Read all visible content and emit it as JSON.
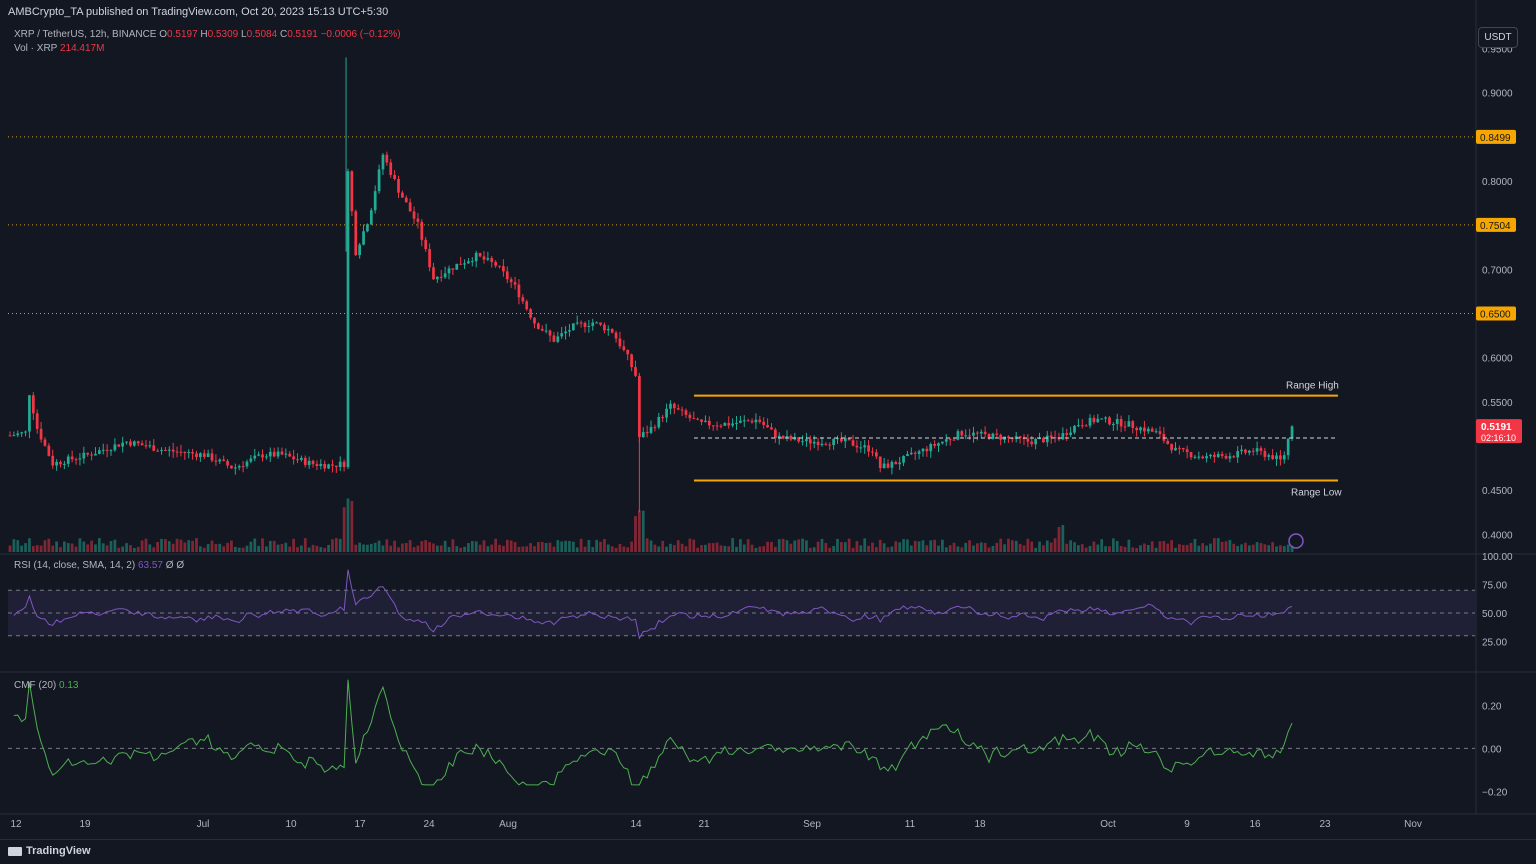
{
  "header": {
    "publisher": "AMBCrypto_TA published on TradingView.com, Oct 20, 2023 15:13 UTC+5:30",
    "symbol": "XRP / TetherUS, 12h, BINANCE",
    "o_label": "O",
    "o": "0.5197",
    "h_label": "H",
    "h": "0.5309",
    "l_label": "L",
    "l": "0.5084",
    "c_label": "C",
    "c": "0.5191",
    "change": "−0.0006 (−0.12%)",
    "vol_label": "Vol · XRP",
    "vol": "214.417M",
    "currency_button": "USDT"
  },
  "indicators": {
    "rsi_label": "RSI (14, close, SMA, 14, 2)",
    "rsi_value": "63.57",
    "rsi_extra": "Ø Ø",
    "cmf_label": "CMF (20)",
    "cmf_value": "0.13"
  },
  "footer": {
    "brand": "TradingView"
  },
  "colors": {
    "bg": "#131722",
    "up": "#22ab94",
    "down": "#f23645",
    "range": "#f7a600",
    "rsi": "#7e57c2",
    "cmf": "#4caf50"
  },
  "chart_data": {
    "type": "candlestick",
    "price_axis": {
      "ticks": [
        "0.9500",
        "0.9000",
        "0.8000",
        "0.7000",
        "0.6000",
        "0.5500",
        "0.4500",
        "0.4000"
      ],
      "range": [
        0.38,
        0.98
      ]
    },
    "price_labels": [
      "0.8499",
      "0.7504",
      "0.6500"
    ],
    "current_price": "0.5191",
    "countdown": "02:16:10",
    "horizontal_levels": [
      0.8499,
      0.7504,
      0.65
    ],
    "range_high": {
      "label": "Range High",
      "value": 0.557
    },
    "range_low": {
      "label": "Range Low",
      "value": 0.461
    },
    "range_mid": 0.509,
    "x_ticks": [
      "12",
      "19",
      "Jul",
      "10",
      "17",
      "24",
      "Aug",
      "14",
      "21",
      "Sep",
      "11",
      "18",
      "Oct",
      "9",
      "16",
      "23",
      "Nov"
    ],
    "key_path": [
      [
        0,
        0.512
      ],
      [
        8,
        0.515
      ],
      [
        10,
        0.56
      ],
      [
        14,
        0.52
      ],
      [
        22,
        0.48
      ],
      [
        40,
        0.49
      ],
      [
        60,
        0.505
      ],
      [
        80,
        0.495
      ],
      [
        100,
        0.49
      ],
      [
        115,
        0.475
      ],
      [
        130,
        0.49
      ],
      [
        140,
        0.49
      ],
      [
        155,
        0.48
      ],
      [
        165,
        0.478
      ],
      [
        172,
        0.48
      ],
      [
        173,
        0.79
      ],
      [
        174,
        0.81
      ],
      [
        178,
        0.72
      ],
      [
        185,
        0.76
      ],
      [
        192,
        0.83
      ],
      [
        200,
        0.79
      ],
      [
        210,
        0.75
      ],
      [
        218,
        0.69
      ],
      [
        230,
        0.705
      ],
      [
        240,
        0.715
      ],
      [
        250,
        0.705
      ],
      [
        260,
        0.68
      ],
      [
        270,
        0.64
      ],
      [
        280,
        0.62
      ],
      [
        290,
        0.635
      ],
      [
        300,
        0.64
      ],
      [
        310,
        0.63
      ],
      [
        318,
        0.6
      ],
      [
        322,
        0.58
      ],
      [
        324,
        0.51
      ],
      [
        330,
        0.52
      ],
      [
        340,
        0.545
      ],
      [
        355,
        0.525
      ],
      [
        370,
        0.525
      ],
      [
        385,
        0.53
      ],
      [
        395,
        0.51
      ],
      [
        410,
        0.505
      ],
      [
        430,
        0.505
      ],
      [
        445,
        0.495
      ],
      [
        447,
        0.475
      ],
      [
        455,
        0.48
      ],
      [
        470,
        0.495
      ],
      [
        490,
        0.515
      ],
      [
        510,
        0.51
      ],
      [
        525,
        0.505
      ],
      [
        540,
        0.51
      ],
      [
        550,
        0.525
      ],
      [
        560,
        0.53
      ],
      [
        575,
        0.525
      ],
      [
        590,
        0.515
      ],
      [
        600,
        0.495
      ],
      [
        615,
        0.487
      ],
      [
        630,
        0.49
      ],
      [
        640,
        0.495
      ],
      [
        650,
        0.488
      ],
      [
        655,
        0.482
      ],
      [
        660,
        0.525
      ]
    ],
    "rsi": {
      "ticks": [
        "100.00",
        "75.00",
        "50.00",
        "25.00"
      ],
      "upper": 70,
      "mid": 50,
      "lower": 30
    },
    "cmf": {
      "ticks": [
        "0.20",
        "0.00",
        "−0.20"
      ]
    }
  }
}
